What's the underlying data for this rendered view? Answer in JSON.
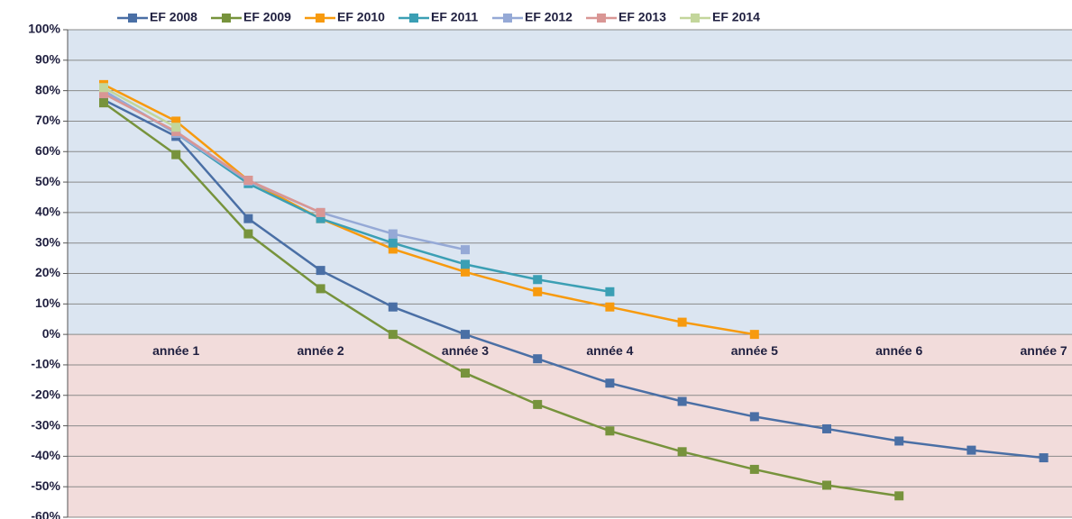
{
  "chart_data": {
    "type": "line",
    "categories": [
      null,
      "année 1",
      null,
      "année 2",
      null,
      "année 3",
      null,
      "année 4",
      null,
      "année 5",
      null,
      "année 6",
      null,
      "année 7"
    ],
    "series": [
      {
        "name": "EF 2008",
        "color": "#4a6fa5",
        "values": [
          77,
          65,
          38,
          21,
          9,
          0,
          -8,
          -16,
          -22,
          -27,
          -31,
          -35,
          -38,
          -40.5
        ]
      },
      {
        "name": "EF 2009",
        "color": "#77933c",
        "values": [
          76,
          59,
          33,
          15,
          0,
          -12.7,
          -23,
          -31.7,
          -38.5,
          -44.3,
          -49.5,
          -53,
          null,
          null
        ]
      },
      {
        "name": "EF 2010",
        "color": "#f79a0e",
        "values": [
          82,
          70,
          50.6,
          38,
          28,
          20.5,
          14,
          9,
          4,
          0,
          null,
          null,
          null,
          null
        ]
      },
      {
        "name": "EF 2011",
        "color": "#3b9fb4",
        "values": [
          80,
          66,
          49.5,
          38,
          30,
          23,
          18,
          14,
          null,
          null,
          null,
          null,
          null,
          null
        ]
      },
      {
        "name": "EF 2012",
        "color": "#95a9d6",
        "values": [
          80,
          66,
          50.3,
          40,
          33,
          27.8,
          null,
          null,
          null,
          null,
          null,
          null,
          null,
          null
        ]
      },
      {
        "name": "EF 2013",
        "color": "#d99694",
        "values": [
          79,
          66.6,
          50.6,
          40,
          null,
          null,
          null,
          null,
          null,
          null,
          null,
          null,
          null,
          null
        ]
      },
      {
        "name": "EF 2014",
        "color": "#c3d69b",
        "values": [
          81,
          68,
          null,
          null,
          null,
          null,
          null,
          null,
          null,
          null,
          null,
          null,
          null,
          null
        ]
      }
    ],
    "ylim": [
      -60,
      100
    ],
    "yticks": [
      {
        "value": 100,
        "label": "100%"
      },
      {
        "value": 90,
        "label": "90%"
      },
      {
        "value": 80,
        "label": "80%"
      },
      {
        "value": 70,
        "label": "70%"
      },
      {
        "value": 60,
        "label": "60%"
      },
      {
        "value": 50,
        "label": "50%"
      },
      {
        "value": 40,
        "label": "40%"
      },
      {
        "value": 30,
        "label": "30%"
      },
      {
        "value": 20,
        "label": "20%"
      },
      {
        "value": 10,
        "label": "10%"
      },
      {
        "value": 0,
        "label": "0%"
      },
      {
        "value": -10,
        "label": "-10%"
      },
      {
        "value": -20,
        "label": "-20%"
      },
      {
        "value": -30,
        "label": "-30%"
      },
      {
        "value": -40,
        "label": "-40%"
      },
      {
        "value": -50,
        "label": "-50%"
      },
      {
        "value": -60,
        "label": "-60%"
      }
    ],
    "grid": true,
    "legend": "top"
  }
}
